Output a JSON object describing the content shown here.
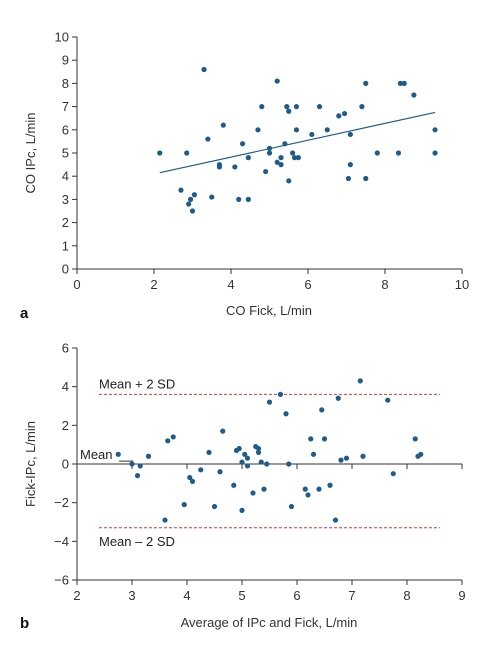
{
  "chart_data": [
    {
      "type": "scatter",
      "panel_label": "a",
      "xlabel": "CO Fick, L/min",
      "ylabel": "CO IPc, L/min",
      "xlim": [
        0,
        10
      ],
      "ylim": [
        0,
        10
      ],
      "xticks": [
        "0",
        "2",
        "4",
        "6",
        "8",
        "10"
      ],
      "yticks": [
        "0",
        "1",
        "2",
        "3",
        "4",
        "5",
        "6",
        "7",
        "8",
        "9",
        "10"
      ],
      "color": "#1f5c8b",
      "points": [
        {
          "x": 2.15,
          "y": 5.0
        },
        {
          "x": 2.7,
          "y": 3.4
        },
        {
          "x": 2.85,
          "y": 5.0
        },
        {
          "x": 2.9,
          "y": 2.8
        },
        {
          "x": 2.95,
          "y": 3.0
        },
        {
          "x": 3.0,
          "y": 2.5
        },
        {
          "x": 3.05,
          "y": 3.2
        },
        {
          "x": 3.3,
          "y": 8.6
        },
        {
          "x": 3.4,
          "y": 5.6
        },
        {
          "x": 3.5,
          "y": 3.1
        },
        {
          "x": 3.7,
          "y": 4.5
        },
        {
          "x": 3.8,
          "y": 6.2
        },
        {
          "x": 3.7,
          "y": 4.4
        },
        {
          "x": 4.1,
          "y": 4.4
        },
        {
          "x": 4.2,
          "y": 3.0
        },
        {
          "x": 4.3,
          "y": 5.4
        },
        {
          "x": 4.45,
          "y": 4.8
        },
        {
          "x": 4.45,
          "y": 3.0
        },
        {
          "x": 4.7,
          "y": 6.0
        },
        {
          "x": 4.8,
          "y": 7.0
        },
        {
          "x": 4.9,
          "y": 4.2
        },
        {
          "x": 5.0,
          "y": 5.0
        },
        {
          "x": 5.0,
          "y": 5.2
        },
        {
          "x": 5.2,
          "y": 8.1
        },
        {
          "x": 5.2,
          "y": 4.6
        },
        {
          "x": 5.3,
          "y": 4.8
        },
        {
          "x": 5.3,
          "y": 4.5
        },
        {
          "x": 5.4,
          "y": 5.4
        },
        {
          "x": 5.45,
          "y": 7.0
        },
        {
          "x": 5.5,
          "y": 3.8
        },
        {
          "x": 5.5,
          "y": 6.8
        },
        {
          "x": 5.6,
          "y": 5.0
        },
        {
          "x": 5.65,
          "y": 4.8
        },
        {
          "x": 5.7,
          "y": 6.0
        },
        {
          "x": 5.7,
          "y": 7.0
        },
        {
          "x": 5.75,
          "y": 4.8
        },
        {
          "x": 6.1,
          "y": 5.8
        },
        {
          "x": 6.3,
          "y": 7.0
        },
        {
          "x": 6.5,
          "y": 6.0
        },
        {
          "x": 6.8,
          "y": 6.6
        },
        {
          "x": 6.95,
          "y": 6.7
        },
        {
          "x": 7.05,
          "y": 3.9
        },
        {
          "x": 7.1,
          "y": 4.5
        },
        {
          "x": 7.1,
          "y": 5.8
        },
        {
          "x": 7.4,
          "y": 7.0
        },
        {
          "x": 7.5,
          "y": 3.9
        },
        {
          "x": 7.5,
          "y": 8.0
        },
        {
          "x": 7.8,
          "y": 5.0
        },
        {
          "x": 8.35,
          "y": 5.0
        },
        {
          "x": 8.4,
          "y": 8.0
        },
        {
          "x": 8.5,
          "y": 8.0
        },
        {
          "x": 8.75,
          "y": 7.5
        },
        {
          "x": 9.3,
          "y": 6.0
        },
        {
          "x": 9.3,
          "y": 5.0
        }
      ],
      "regression_line": {
        "x": [
          2.15,
          9.3
        ],
        "y": [
          4.15,
          6.75
        ]
      }
    },
    {
      "type": "scatter",
      "panel_label": "b",
      "xlabel": "Average of IPc and Fick, L/min",
      "ylabel": "Fick-IPc, L/min",
      "xlim": [
        2,
        9
      ],
      "ylim": [
        -6,
        6
      ],
      "xticks": [
        "2",
        "3",
        "4",
        "5",
        "6",
        "7",
        "8",
        "9"
      ],
      "yticks": [
        "−6",
        "−4",
        "−2",
        "0",
        "2",
        "4",
        "6"
      ],
      "color": "#1f5c8b",
      "reference_lines": [
        {
          "label": "Mean + 2 SD",
          "y": 3.6
        },
        {
          "label": "Mean",
          "y": 0.15
        },
        {
          "label": "Mean – 2 SD",
          "y": -3.3
        }
      ],
      "points": [
        {
          "x": 2.75,
          "y": 0.5
        },
        {
          "x": 3.0,
          "y": 0.0
        },
        {
          "x": 3.1,
          "y": -0.6
        },
        {
          "x": 3.15,
          "y": -0.1
        },
        {
          "x": 3.3,
          "y": 0.4
        },
        {
          "x": 3.6,
          "y": -2.9
        },
        {
          "x": 3.65,
          "y": 1.2
        },
        {
          "x": 3.75,
          "y": 1.4
        },
        {
          "x": 3.95,
          "y": -2.1
        },
        {
          "x": 4.05,
          "y": -0.7
        },
        {
          "x": 4.1,
          "y": -0.9
        },
        {
          "x": 4.25,
          "y": -0.3
        },
        {
          "x": 4.4,
          "y": 0.6
        },
        {
          "x": 4.5,
          "y": -2.2
        },
        {
          "x": 4.6,
          "y": -0.4
        },
        {
          "x": 4.65,
          "y": 1.7
        },
        {
          "x": 4.85,
          "y": -1.1
        },
        {
          "x": 4.9,
          "y": 0.7
        },
        {
          "x": 4.95,
          "y": 0.8
        },
        {
          "x": 5.0,
          "y": 0.1
        },
        {
          "x": 5.0,
          "y": -2.4
        },
        {
          "x": 5.05,
          "y": 0.5
        },
        {
          "x": 5.1,
          "y": -0.1
        },
        {
          "x": 5.1,
          "y": 0.3
        },
        {
          "x": 5.2,
          "y": -1.5
        },
        {
          "x": 5.25,
          "y": 0.9
        },
        {
          "x": 5.3,
          "y": 0.8
        },
        {
          "x": 5.3,
          "y": 0.6
        },
        {
          "x": 5.35,
          "y": 0.1
        },
        {
          "x": 5.4,
          "y": -1.3
        },
        {
          "x": 5.45,
          "y": 0.0
        },
        {
          "x": 5.5,
          "y": 3.2
        },
        {
          "x": 5.7,
          "y": 3.6
        },
        {
          "x": 5.8,
          "y": 2.6
        },
        {
          "x": 5.85,
          "y": 0.0
        },
        {
          "x": 5.9,
          "y": -2.2
        },
        {
          "x": 6.15,
          "y": -1.3
        },
        {
          "x": 6.2,
          "y": -1.6
        },
        {
          "x": 6.25,
          "y": 1.3
        },
        {
          "x": 6.3,
          "y": 0.5
        },
        {
          "x": 6.4,
          "y": -1.3
        },
        {
          "x": 6.45,
          "y": 2.8
        },
        {
          "x": 6.5,
          "y": 1.3
        },
        {
          "x": 6.6,
          "y": -1.1
        },
        {
          "x": 6.7,
          "y": -2.9
        },
        {
          "x": 6.75,
          "y": 3.4
        },
        {
          "x": 6.8,
          "y": 0.2
        },
        {
          "x": 6.9,
          "y": 0.3
        },
        {
          "x": 7.15,
          "y": 4.3
        },
        {
          "x": 7.2,
          "y": 0.4
        },
        {
          "x": 7.65,
          "y": 3.3
        },
        {
          "x": 7.75,
          "y": -0.5
        },
        {
          "x": 8.15,
          "y": 1.3
        },
        {
          "x": 8.2,
          "y": 0.4
        },
        {
          "x": 8.25,
          "y": 0.5
        }
      ]
    }
  ]
}
